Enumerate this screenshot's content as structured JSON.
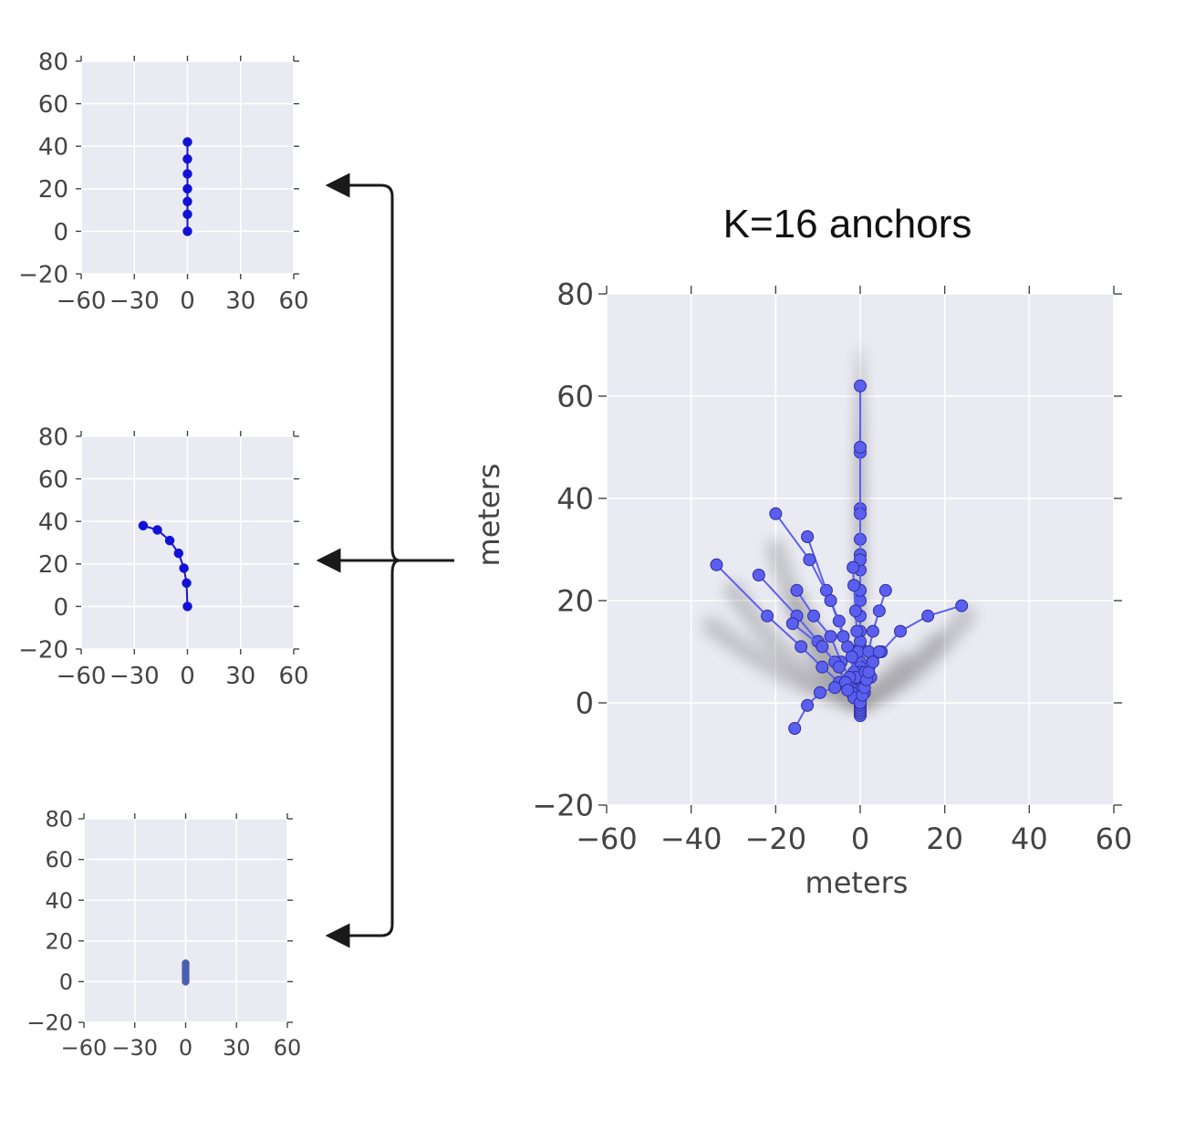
{
  "chart_data": [
    {
      "type": "line",
      "title": "",
      "xlabel": "",
      "ylabel": "",
      "xlim": [
        -60,
        60
      ],
      "ylim": [
        -20,
        80
      ],
      "x_ticks": [
        "−60",
        "−30",
        "0",
        "30",
        "60"
      ],
      "x_tick_values": [
        -60,
        -30,
        0,
        30,
        60
      ],
      "y_ticks": [
        "80",
        "60",
        "40",
        "20",
        "0",
        "−20"
      ],
      "y_tick_values": [
        80,
        60,
        40,
        20,
        0,
        -20
      ],
      "grid": true,
      "colors": {
        "series": "#1212d6",
        "background": "#eaeaf2",
        "grid": "#ffffff"
      },
      "series": [
        {
          "x": [
            0,
            0,
            0,
            0,
            0,
            0,
            0
          ],
          "y": [
            0,
            8,
            14,
            20,
            27,
            34,
            42
          ]
        }
      ]
    },
    {
      "type": "line",
      "title": "",
      "xlabel": "",
      "ylabel": "",
      "xlim": [
        -60,
        60
      ],
      "ylim": [
        -20,
        80
      ],
      "x_ticks": [
        "−60",
        "−30",
        "0",
        "30",
        "60"
      ],
      "x_tick_values": [
        -60,
        -30,
        0,
        30,
        60
      ],
      "y_ticks": [
        "80",
        "60",
        "40",
        "20",
        "0",
        "−20"
      ],
      "y_tick_values": [
        80,
        60,
        40,
        20,
        0,
        -20
      ],
      "grid": true,
      "colors": {
        "series": "#1212d6",
        "background": "#eaeaf2",
        "grid": "#ffffff"
      },
      "series": [
        {
          "x": [
            0,
            -0.5,
            -2,
            -5,
            -10,
            -17,
            -25
          ],
          "y": [
            0,
            11,
            18,
            25,
            31,
            36,
            38
          ]
        }
      ]
    },
    {
      "type": "line",
      "title": "",
      "xlabel": "",
      "ylabel": "",
      "xlim": [
        -60,
        60
      ],
      "ylim": [
        -20,
        80
      ],
      "x_ticks": [
        "−60",
        "−30",
        "0",
        "30",
        "60"
      ],
      "x_tick_values": [
        -60,
        -30,
        0,
        30,
        60
      ],
      "y_ticks": [
        "80",
        "60",
        "40",
        "20",
        "0",
        "−20"
      ],
      "y_tick_values": [
        80,
        60,
        40,
        20,
        0,
        -20
      ],
      "grid": true,
      "colors": {
        "series": "#4a5fb0",
        "background": "#eaeaf2",
        "grid": "#ffffff"
      },
      "series": [
        {
          "x": [
            0,
            0,
            0,
            0,
            0,
            0,
            0
          ],
          "y": [
            0,
            1.5,
            3,
            4.5,
            6,
            7.5,
            9
          ]
        }
      ]
    },
    {
      "type": "line",
      "title": "K=16 anchors",
      "xlabel": "meters",
      "ylabel": "meters",
      "xlim": [
        -60,
        60
      ],
      "ylim": [
        -20,
        80
      ],
      "x_ticks": [
        "−60",
        "−40",
        "−20",
        "0",
        "20",
        "40",
        "60"
      ],
      "x_tick_values": [
        -60,
        -40,
        -20,
        0,
        20,
        40,
        60
      ],
      "y_ticks": [
        "80",
        "60",
        "40",
        "20",
        "0",
        "−20"
      ],
      "y_tick_values": [
        80,
        60,
        40,
        20,
        0,
        -20
      ],
      "grid": true,
      "colors": {
        "series": "#5b5ff0",
        "marker_edge": "#2b2f9a",
        "background": "#eaeaf2",
        "grid": "#ffffff",
        "cloud": "#555555"
      },
      "series": [
        {
          "x": [
            0,
            0,
            0,
            0,
            0,
            0,
            0
          ],
          "y": [
            -2.5,
            -2,
            -1.5,
            -1,
            -0.5,
            0,
            0.5
          ]
        },
        {
          "x": [
            0,
            0,
            0,
            0,
            0,
            0,
            0
          ],
          "y": [
            0,
            1.5,
            2.5,
            3.5,
            5,
            6.5,
            8
          ]
        },
        {
          "x": [
            0,
            0,
            0,
            0,
            0,
            0,
            0
          ],
          "y": [
            0,
            7,
            14,
            20,
            26,
            32,
            38
          ]
        },
        {
          "x": [
            0,
            0,
            0,
            0,
            0,
            0,
            0
          ],
          "y": [
            0,
            11,
            22,
            29,
            37,
            49,
            62
          ]
        },
        {
          "x": [
            0,
            0,
            0,
            0,
            0,
            0,
            0
          ],
          "y": [
            0,
            6,
            12,
            17,
            22,
            28,
            50
          ]
        },
        {
          "x": [
            0,
            -0.2,
            -0.5,
            -0.8,
            -1.1,
            -1.5,
            -1.7
          ],
          "y": [
            0,
            6,
            10,
            14,
            18,
            23,
            26.5
          ]
        },
        {
          "x": [
            0,
            -0.5,
            -1.5,
            -3,
            -5,
            -8,
            -12.5
          ],
          "y": [
            0,
            3,
            6,
            11,
            16,
            22,
            32.5
          ]
        },
        {
          "x": [
            0,
            -1,
            -2,
            -4,
            -7,
            -12,
            -20
          ],
          "y": [
            0,
            5,
            9,
            13,
            20,
            28,
            37
          ]
        },
        {
          "x": [
            0,
            -1,
            -2.5,
            -4.5,
            -7,
            -11,
            -15
          ],
          "y": [
            0,
            2.5,
            5,
            8,
            13,
            17,
            22
          ]
        },
        {
          "x": [
            0,
            -1.5,
            -3.5,
            -6,
            -10,
            -15,
            -24
          ],
          "y": [
            0,
            1.5,
            4,
            8,
            12,
            17,
            25
          ]
        },
        {
          "x": [
            0,
            -2,
            -5,
            -9,
            -14,
            -22,
            -34
          ],
          "y": [
            0,
            2,
            4,
            7,
            11,
            17,
            27
          ]
        },
        {
          "x": [
            0,
            -1,
            -2,
            -3.5,
            -5,
            -9,
            -16
          ],
          "y": [
            0,
            1,
            2,
            4,
            7,
            11,
            15.5
          ]
        },
        {
          "x": [
            0,
            -1.5,
            -3,
            -6,
            -9.5,
            -12.5,
            -15.5
          ],
          "y": [
            0,
            1,
            2.5,
            3,
            2,
            -0.5,
            -5
          ]
        },
        {
          "x": [
            0,
            0.5,
            1.2,
            2,
            3,
            4.5,
            6
          ],
          "y": [
            0,
            3,
            6,
            10,
            14,
            18,
            22
          ]
        },
        {
          "x": [
            0,
            1,
            2.5,
            5,
            9.5,
            16,
            24
          ],
          "y": [
            0,
            2,
            5,
            10,
            14,
            17,
            19
          ]
        },
        {
          "x": [
            0,
            0.5,
            1,
            1.5,
            2,
            3,
            4.5
          ],
          "y": [
            0,
            1.5,
            3,
            4.5,
            6,
            8,
            10
          ]
        }
      ]
    }
  ]
}
